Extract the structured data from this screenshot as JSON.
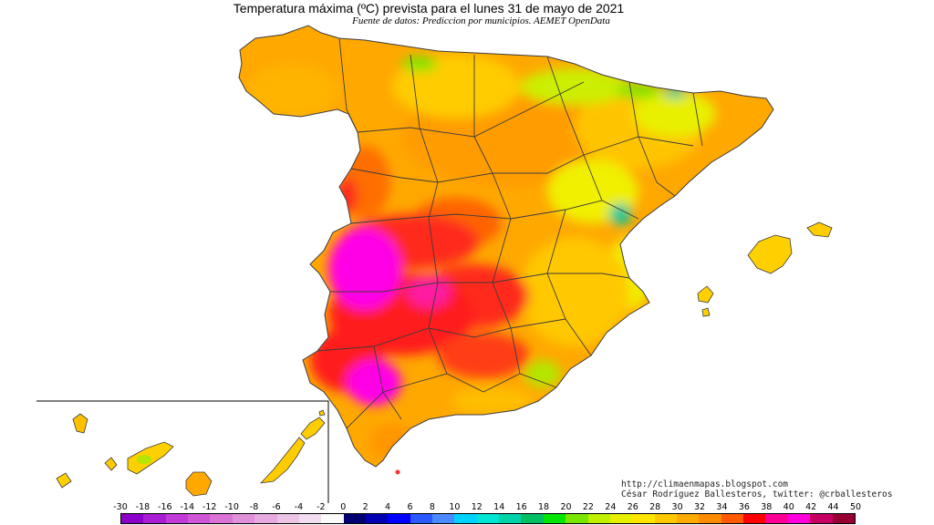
{
  "title": "Temperatura máxima (ºC) prevista para el lunes 31 de mayo de 2021",
  "subtitle": "Fuente de datos: Prediccion por municipios. AEMET OpenData",
  "credits": {
    "url": "http://climaenmapas.blogspot.com",
    "author": "César Rodríguez Ballesteros, twitter: @crballesteros"
  },
  "legend": {
    "ticks": [
      "-30",
      "-18",
      "-16",
      "-14",
      "-12",
      "-10",
      "-8",
      "-6",
      "-4",
      "-2",
      "0",
      "2",
      "4",
      "6",
      "8",
      "10",
      "12",
      "14",
      "16",
      "18",
      "20",
      "22",
      "24",
      "26",
      "28",
      "30",
      "32",
      "34",
      "36",
      "38",
      "40",
      "42",
      "44",
      "50"
    ],
    "colors": [
      "#8a00c8",
      "#a91ed2",
      "#c23ad8",
      "#d056d8",
      "#d974d6",
      "#e090d8",
      "#e6aade",
      "#ecc4e6",
      "#f2dcef",
      "#fafafa",
      "#000070",
      "#0000b4",
      "#0000ff",
      "#2a5aff",
      "#4a8aff",
      "#00d2ff",
      "#00e6d2",
      "#00d2aa",
      "#00be64",
      "#00e600",
      "#7ae600",
      "#bef000",
      "#e6f000",
      "#ffe600",
      "#ffc800",
      "#ffaa00",
      "#ff8c00",
      "#ff5a00",
      "#ff0000",
      "#ff0096",
      "#ff00dc",
      "#c80064",
      "#960032"
    ]
  },
  "map": {
    "regions": "Peninsular Spain, Balearic Islands, Canary Islands",
    "colors": {
      "hot_magenta": "#ff00e6",
      "red": "#ff1a1a",
      "orange_red": "#ff5a00",
      "orange": "#ff9600",
      "light_orange": "#ffbe00",
      "yellow": "#f0f000",
      "green_yellow": "#b4e600",
      "teal": "#00c8a0",
      "border": "#3c3c3c"
    }
  }
}
